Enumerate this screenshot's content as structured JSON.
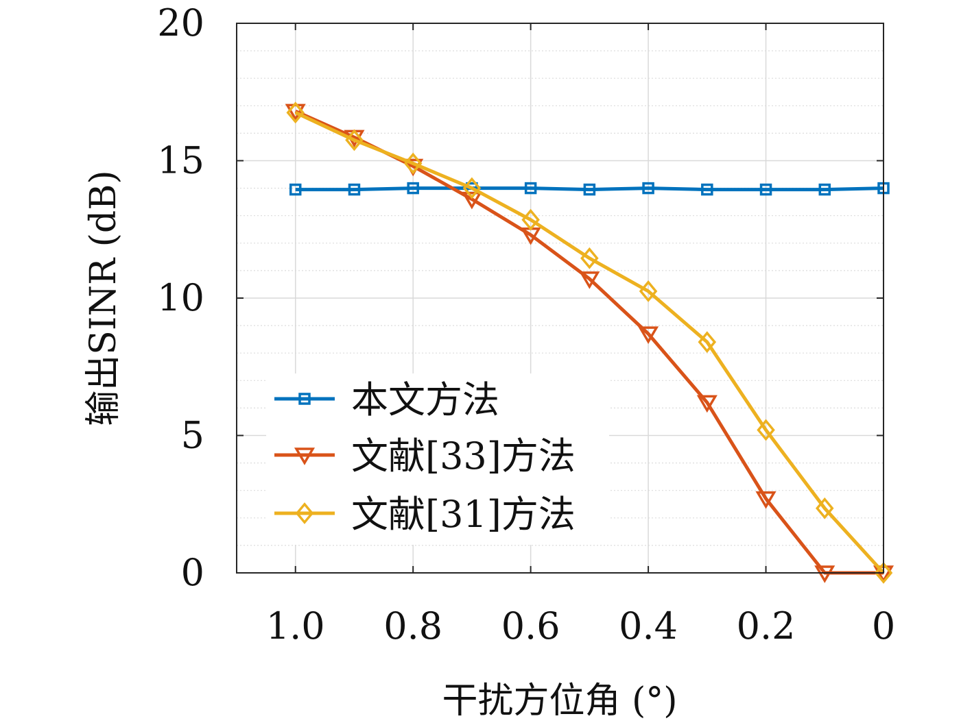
{
  "chart_data": {
    "type": "line",
    "xlabel": "干扰方位角 (°)",
    "ylabel": "输出SINR (dB)",
    "x": [
      1.0,
      0.9,
      0.8,
      0.7,
      0.6,
      0.5,
      0.4,
      0.3,
      0.2,
      0.1,
      0
    ],
    "x_reversed": true,
    "xlim": [
      1.1,
      0
    ],
    "ylim": [
      0,
      20
    ],
    "x_ticks": [
      1.0,
      0.8,
      0.6,
      0.4,
      0.2,
      0
    ],
    "x_tick_labels": [
      "1.0",
      "0.8",
      "0.6",
      "0.4",
      "0.2",
      "0"
    ],
    "y_ticks": [
      0,
      5,
      10,
      15,
      20
    ],
    "y_tick_labels": [
      "0",
      "5",
      "10",
      "15",
      "20"
    ],
    "grid": true,
    "minor_grid": true,
    "legend_position": "bottom-left",
    "series": [
      {
        "name": "本文方法",
        "marker": "square",
        "color": "#0072BD",
        "values": [
          13.95,
          13.95,
          14.0,
          14.0,
          14.0,
          13.95,
          14.0,
          13.95,
          13.95,
          13.95,
          14.0
        ]
      },
      {
        "name": "文献[33]方法",
        "marker": "triangle-down",
        "color": "#D95319",
        "values": [
          16.8,
          15.85,
          14.8,
          13.6,
          12.3,
          10.7,
          8.7,
          6.2,
          2.7,
          0.0,
          0.0
        ]
      },
      {
        "name": "文献[31]方法",
        "marker": "diamond",
        "color": "#EDB120",
        "values": [
          16.75,
          15.75,
          14.9,
          14.0,
          12.85,
          11.45,
          10.25,
          8.4,
          5.2,
          2.35,
          0.0
        ]
      }
    ]
  }
}
